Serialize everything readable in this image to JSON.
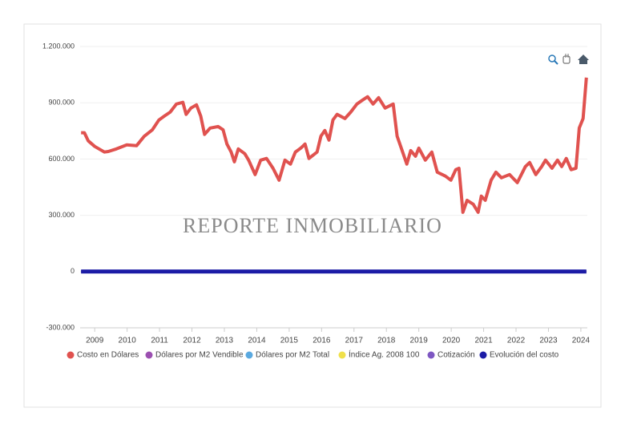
{
  "chart_data": {
    "type": "line",
    "watermark": "REPORTE INMOBILIARIO",
    "xlim": [
      2008.55,
      2024.2
    ],
    "xticks": [
      2009,
      2010,
      2011,
      2012,
      2013,
      2014,
      2015,
      2016,
      2017,
      2018,
      2019,
      2020,
      2021,
      2022,
      2023,
      2024
    ],
    "ylim": [
      -300000,
      1200000
    ],
    "yticks": [
      {
        "value": -300000,
        "label": "-300.000"
      },
      0,
      {
        "value": 300000,
        "label": "300.000"
      },
      {
        "value": 600000,
        "label": "600.000"
      },
      {
        "value": 900000,
        "label": "900.000"
      },
      {
        "value": 1200000,
        "label": "1.200.000"
      }
    ],
    "grid": true,
    "legend": "bottom",
    "series": [
      {
        "name": "Costo en Dólares",
        "color": "#e0524f",
        "x": [
          2008.58,
          2008.68,
          2008.8,
          2009.0,
          2009.17,
          2009.3,
          2009.42,
          2009.67,
          2009.99,
          2010.29,
          2010.53,
          2010.78,
          2010.98,
          2011.15,
          2011.33,
          2011.52,
          2011.72,
          2011.82,
          2011.97,
          2012.14,
          2012.27,
          2012.39,
          2012.56,
          2012.81,
          2012.96,
          2013.08,
          2013.21,
          2013.31,
          2013.43,
          2013.63,
          2013.75,
          2013.95,
          2014.12,
          2014.3,
          2014.5,
          2014.69,
          2014.87,
          2015.04,
          2015.19,
          2015.36,
          2015.49,
          2015.61,
          2015.86,
          2015.98,
          2016.1,
          2016.23,
          2016.35,
          2016.48,
          2016.72,
          2016.9,
          2017.09,
          2017.27,
          2017.42,
          2017.59,
          2017.76,
          2017.96,
          2018.21,
          2018.33,
          2018.46,
          2018.63,
          2018.75,
          2018.9,
          2019.0,
          2019.2,
          2019.4,
          2019.57,
          2019.82,
          2019.99,
          2020.14,
          2020.24,
          2020.36,
          2020.49,
          2020.68,
          2020.83,
          2020.93,
          2021.05,
          2021.23,
          2021.38,
          2021.55,
          2021.8,
          2022.04,
          2022.29,
          2022.42,
          2022.61,
          2022.79,
          2022.91,
          2023.11,
          2023.28,
          2023.41,
          2023.55,
          2023.7,
          2023.85,
          2023.95,
          2024.07,
          2024.17
        ],
        "values": [
          740000,
          740000,
          697000,
          667000,
          650000,
          637000,
          640000,
          654000,
          675000,
          671000,
          722000,
          756000,
          808000,
          829000,
          850000,
          893000,
          902000,
          838000,
          872000,
          889000,
          829000,
          731000,
          765000,
          773000,
          756000,
          680000,
          637000,
          585000,
          654000,
          628000,
          594000,
          517000,
          594000,
          603000,
          551000,
          487000,
          594000,
          573000,
          637000,
          658000,
          680000,
          603000,
          637000,
          722000,
          752000,
          701000,
          808000,
          838000,
          816000,
          850000,
          893000,
          915000,
          932000,
          893000,
          927000,
          872000,
          893000,
          722000,
          658000,
          573000,
          645000,
          615000,
          658000,
          594000,
          637000,
          530000,
          509000,
          487000,
          543000,
          551000,
          316000,
          380000,
          359000,
          316000,
          402000,
          380000,
          487000,
          530000,
          500000,
          517000,
          474000,
          560000,
          581000,
          517000,
          560000,
          594000,
          551000,
          594000,
          560000,
          603000,
          543000,
          551000,
          765000,
          816000,
          1034000
        ]
      },
      {
        "name": "Dólares por M2 Vendible",
        "color": "#9b4fb0",
        "x": [
          2008.58,
          2024.17
        ],
        "values": [
          0,
          0
        ]
      },
      {
        "name": "Dólares por M2 Total",
        "color": "#5aa9e0",
        "x": [
          2008.58,
          2024.17
        ],
        "values": [
          0,
          0
        ]
      },
      {
        "name": "Índice Ag. 2008 100",
        "color": "#f0e04a",
        "x": [
          2008.58,
          2024.17
        ],
        "values": [
          0,
          0
        ]
      },
      {
        "name": "Cotización",
        "color": "#7e57c2",
        "x": [
          2008.58,
          2024.17
        ],
        "values": [
          0,
          0
        ]
      },
      {
        "name": "Evolución del costo",
        "color": "#1c1ca6",
        "x": [
          2008.58,
          2024.17
        ],
        "values": [
          0,
          0
        ]
      }
    ]
  }
}
